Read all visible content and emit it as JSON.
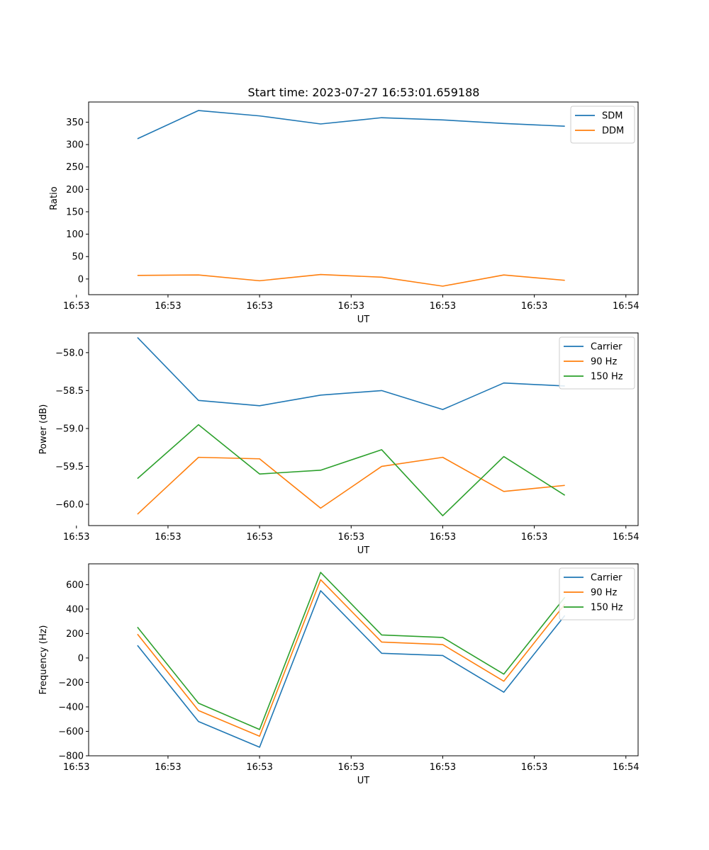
{
  "figure_title": "Start time: 2023-07-27 16:53:01.659188",
  "chart_data": [
    {
      "type": "line",
      "title": "Start time: 2023-07-27 16:53:01.659188",
      "xlabel": "UT",
      "ylabel": "Ratio",
      "x": [
        1,
        2,
        3,
        4,
        5,
        6,
        7,
        8
      ],
      "xlim": [
        0.2,
        9.2
      ],
      "x_ticks": [
        0,
        1.5,
        3,
        4.5,
        6,
        7.5,
        9
      ],
      "x_tick_labels": [
        "16:53",
        "16:53",
        "16:53",
        "16:53",
        "16:53",
        "16:53",
        "16:54"
      ],
      "ylim": [
        -35,
        395
      ],
      "y_ticks": [
        0,
        50,
        100,
        150,
        200,
        250,
        300,
        350
      ],
      "y_tick_labels": [
        "0",
        "50",
        "100",
        "150",
        "200",
        "250",
        "300",
        "350"
      ],
      "legend_position": "top-right",
      "series": [
        {
          "name": "SDM",
          "color": "#1f77b4",
          "values": [
            313,
            376,
            364,
            346,
            360,
            355,
            347,
            341
          ]
        },
        {
          "name": "DDM",
          "color": "#ff7f0e",
          "values": [
            8,
            9,
            -4,
            10,
            4,
            -16,
            9,
            -3
          ]
        }
      ]
    },
    {
      "type": "line",
      "title": "",
      "xlabel": "UT",
      "ylabel": "Power (dB)",
      "x": [
        1,
        2,
        3,
        4,
        5,
        6,
        7,
        8
      ],
      "xlim": [
        0.2,
        9.2
      ],
      "x_ticks": [
        0,
        1.5,
        3,
        4.5,
        6,
        7.5,
        9
      ],
      "x_tick_labels": [
        "16:53",
        "16:53",
        "16:53",
        "16:53",
        "16:53",
        "16:53",
        "16:54"
      ],
      "ylim": [
        -60.28,
        -57.74
      ],
      "y_ticks": [
        -60.0,
        -59.5,
        -59.0,
        -58.5,
        -58.0
      ],
      "y_tick_labels": [
        "−60.0",
        "−59.5",
        "−59.0",
        "−58.5",
        "−58.0"
      ],
      "legend_position": "top-right",
      "series": [
        {
          "name": "Carrier",
          "color": "#1f77b4",
          "values": [
            -57.8,
            -58.63,
            -58.7,
            -58.56,
            -58.5,
            -58.75,
            -58.4,
            -58.44
          ]
        },
        {
          "name": "90 Hz",
          "color": "#ff7f0e",
          "values": [
            -60.13,
            -59.38,
            -59.4,
            -60.05,
            -59.5,
            -59.38,
            -59.83,
            -59.75
          ]
        },
        {
          "name": "150 Hz",
          "color": "#2ca02c",
          "values": [
            -59.66,
            -58.95,
            -59.6,
            -59.55,
            -59.28,
            -60.15,
            -59.37,
            -59.88
          ]
        }
      ]
    },
    {
      "type": "line",
      "title": "",
      "xlabel": "UT",
      "ylabel": "Frequency (Hz)",
      "x": [
        1,
        2,
        3,
        4,
        5,
        6,
        7,
        8
      ],
      "xlim": [
        0.2,
        9.2
      ],
      "x_ticks": [
        0,
        1.5,
        3,
        4.5,
        6,
        7.5,
        9
      ],
      "x_tick_labels": [
        "16:53",
        "16:53",
        "16:53",
        "16:53",
        "16:53",
        "16:53",
        "16:54"
      ],
      "ylim": [
        -800,
        770
      ],
      "y_ticks": [
        -800,
        -600,
        -400,
        -200,
        0,
        200,
        400,
        600
      ],
      "y_tick_labels": [
        "−800",
        "−600",
        "−400",
        "−200",
        "0",
        "200",
        "400",
        "600"
      ],
      "legend_position": "top-right",
      "series": [
        {
          "name": "Carrier",
          "color": "#1f77b4",
          "values": [
            103,
            -520,
            -730,
            550,
            38,
            20,
            -280,
            348
          ]
        },
        {
          "name": "90 Hz",
          "color": "#ff7f0e",
          "values": [
            195,
            -430,
            -640,
            640,
            130,
            110,
            -190,
            440
          ]
        },
        {
          "name": "150 Hz",
          "color": "#2ca02c",
          "values": [
            252,
            -370,
            -585,
            700,
            188,
            168,
            -132,
            496
          ]
        }
      ]
    }
  ]
}
